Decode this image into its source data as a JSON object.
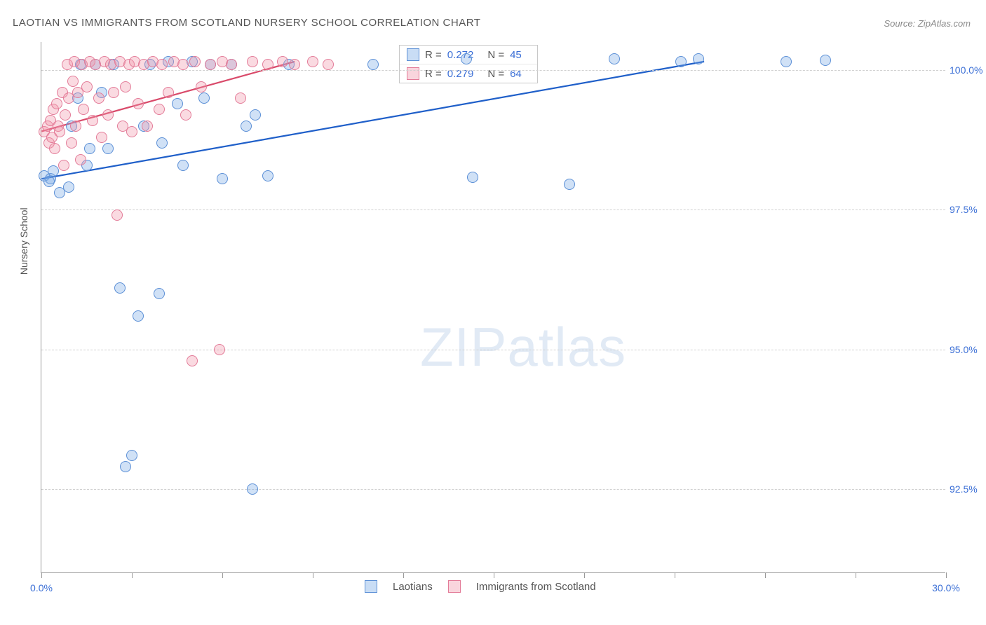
{
  "title": "LAOTIAN VS IMMIGRANTS FROM SCOTLAND NURSERY SCHOOL CORRELATION CHART",
  "source_label": "Source: ZipAtlas.com",
  "ylabel": "Nursery School",
  "watermark": {
    "bold": "ZIP",
    "rest": "atlas"
  },
  "chart": {
    "type": "scatter",
    "background_color": "#ffffff",
    "grid_color": "#d0d0d0",
    "axis_color": "#9a9a9a",
    "label_color": "#3b6fd6",
    "title_color": "#555555",
    "title_fontsize": 15,
    "label_fontsize": 14,
    "xlim": [
      0,
      30
    ],
    "ylim": [
      91,
      100.5
    ],
    "xticks": [
      0,
      3,
      6,
      9,
      12,
      15,
      18,
      21,
      24,
      27,
      30
    ],
    "xtick_labels": {
      "0": "0.0%",
      "30": "30.0%"
    },
    "yticks": [
      92.5,
      95.0,
      97.5,
      100.0
    ],
    "ytick_labels": [
      "92.5%",
      "95.0%",
      "97.5%",
      "100.0%"
    ],
    "marker_size": 16,
    "marker_opacity": 0.35,
    "series": [
      {
        "name": "Laotians",
        "color_fill": "#78aae6",
        "color_stroke": "#5b8fd6",
        "r_label": "R =",
        "r_value": "0.272",
        "n_label": "N =",
        "n_value": "45",
        "trend": {
          "x1": 0,
          "y1": 98.05,
          "x2": 22,
          "y2": 100.15,
          "stroke": "#1f5fc9",
          "width": 2.2
        },
        "points": [
          [
            0.1,
            98.1
          ],
          [
            0.3,
            98.05
          ],
          [
            0.25,
            98.0
          ],
          [
            0.4,
            98.2
          ],
          [
            0.6,
            97.8
          ],
          [
            1.0,
            99.0
          ],
          [
            1.2,
            99.5
          ],
          [
            1.3,
            100.1
          ],
          [
            1.5,
            98.3
          ],
          [
            1.8,
            100.1
          ],
          [
            2.0,
            99.6
          ],
          [
            2.2,
            98.6
          ],
          [
            2.4,
            100.1
          ],
          [
            2.6,
            96.1
          ],
          [
            2.8,
            92.9
          ],
          [
            3.0,
            93.1
          ],
          [
            3.2,
            95.6
          ],
          [
            3.4,
            99.0
          ],
          [
            3.6,
            100.1
          ],
          [
            3.9,
            96.0
          ],
          [
            4.0,
            98.7
          ],
          [
            4.2,
            100.15
          ],
          [
            4.5,
            99.4
          ],
          [
            4.7,
            98.3
          ],
          [
            5.0,
            100.15
          ],
          [
            5.4,
            99.5
          ],
          [
            5.6,
            100.1
          ],
          [
            6.0,
            98.05
          ],
          [
            6.3,
            100.1
          ],
          [
            6.8,
            99.0
          ],
          [
            7.0,
            92.5
          ],
          [
            7.1,
            99.2
          ],
          [
            7.5,
            98.1
          ],
          [
            8.2,
            100.1
          ],
          [
            11.0,
            100.1
          ],
          [
            14.1,
            100.2
          ],
          [
            14.3,
            98.08
          ],
          [
            17.5,
            97.95
          ],
          [
            19.0,
            100.2
          ],
          [
            21.2,
            100.15
          ],
          [
            21.8,
            100.2
          ],
          [
            24.7,
            100.15
          ],
          [
            26.0,
            100.18
          ],
          [
            0.9,
            97.9
          ],
          [
            1.6,
            98.6
          ]
        ]
      },
      {
        "name": "Immigrants from Scotland",
        "color_fill": "#f096aa",
        "color_stroke": "#e37b98",
        "r_label": "R =",
        "r_value": "0.279",
        "n_label": "N =",
        "n_value": "64",
        "trend": {
          "x1": 0,
          "y1": 98.9,
          "x2": 8.4,
          "y2": 100.15,
          "stroke": "#d94a6a",
          "width": 2.2
        },
        "points": [
          [
            0.1,
            98.9
          ],
          [
            0.2,
            99.0
          ],
          [
            0.25,
            98.7
          ],
          [
            0.3,
            99.1
          ],
          [
            0.35,
            98.8
          ],
          [
            0.4,
            99.3
          ],
          [
            0.45,
            98.6
          ],
          [
            0.5,
            99.4
          ],
          [
            0.55,
            99.0
          ],
          [
            0.6,
            98.9
          ],
          [
            0.7,
            99.6
          ],
          [
            0.75,
            98.3
          ],
          [
            0.8,
            99.2
          ],
          [
            0.85,
            100.1
          ],
          [
            0.9,
            99.5
          ],
          [
            1.0,
            98.7
          ],
          [
            1.05,
            99.8
          ],
          [
            1.1,
            100.15
          ],
          [
            1.15,
            99.0
          ],
          [
            1.2,
            99.6
          ],
          [
            1.3,
            98.4
          ],
          [
            1.35,
            100.1
          ],
          [
            1.4,
            99.3
          ],
          [
            1.5,
            99.7
          ],
          [
            1.6,
            100.15
          ],
          [
            1.7,
            99.1
          ],
          [
            1.8,
            100.1
          ],
          [
            1.9,
            99.5
          ],
          [
            2.0,
            98.8
          ],
          [
            2.1,
            100.15
          ],
          [
            2.2,
            99.2
          ],
          [
            2.3,
            100.1
          ],
          [
            2.4,
            99.6
          ],
          [
            2.5,
            97.4
          ],
          [
            2.6,
            100.15
          ],
          [
            2.7,
            99.0
          ],
          [
            2.8,
            99.7
          ],
          [
            2.9,
            100.1
          ],
          [
            3.0,
            98.9
          ],
          [
            3.1,
            100.15
          ],
          [
            3.2,
            99.4
          ],
          [
            3.4,
            100.1
          ],
          [
            3.5,
            99.0
          ],
          [
            3.7,
            100.15
          ],
          [
            3.9,
            99.3
          ],
          [
            4.0,
            100.1
          ],
          [
            4.2,
            99.6
          ],
          [
            4.4,
            100.15
          ],
          [
            4.7,
            100.1
          ],
          [
            4.8,
            99.2
          ],
          [
            5.0,
            94.8
          ],
          [
            5.1,
            100.15
          ],
          [
            5.3,
            99.7
          ],
          [
            5.6,
            100.1
          ],
          [
            5.9,
            95.0
          ],
          [
            6.0,
            100.15
          ],
          [
            6.3,
            100.1
          ],
          [
            6.6,
            99.5
          ],
          [
            7.0,
            100.15
          ],
          [
            7.5,
            100.1
          ],
          [
            8.0,
            100.15
          ],
          [
            8.4,
            100.1
          ],
          [
            9.0,
            100.15
          ],
          [
            9.5,
            100.1
          ]
        ]
      }
    ]
  },
  "legend": {
    "items": [
      {
        "label": "Laotians",
        "swatch": "blue"
      },
      {
        "label": "Immigrants from Scotland",
        "swatch": "pink"
      }
    ]
  }
}
